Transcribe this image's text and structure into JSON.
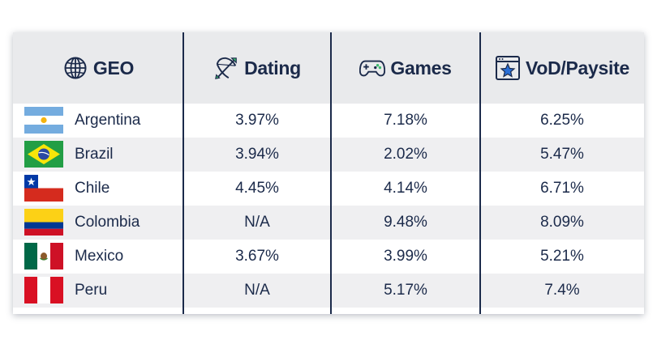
{
  "table": {
    "headers": {
      "geo": "GEO",
      "dating": "Dating",
      "games": "Games",
      "vod": "VoD/Paysite"
    },
    "icons": {
      "geo": "globe-icon",
      "dating": "bow-arrow-icon",
      "games": "gamepad-icon",
      "vod": "browser-star-icon"
    },
    "rows": [
      {
        "country": "Argentina",
        "flag": "argentina-flag",
        "dating": "3.97%",
        "games": "7.18%",
        "vod": "6.25%"
      },
      {
        "country": "Brazil",
        "flag": "brazil-flag",
        "dating": "3.94%",
        "games": "2.02%",
        "vod": "5.47%"
      },
      {
        "country": "Chile",
        "flag": "chile-flag",
        "dating": "4.45%",
        "games": "4.14%",
        "vod": "6.71%"
      },
      {
        "country": "Colombia",
        "flag": "colombia-flag",
        "dating": "N/A",
        "games": "9.48%",
        "vod": "8.09%"
      },
      {
        "country": "Mexico",
        "flag": "mexico-flag",
        "dating": "3.67%",
        "games": "3.99%",
        "vod": "5.21%"
      },
      {
        "country": "Peru",
        "flag": "peru-flag",
        "dating": "N/A",
        "games": "5.17%",
        "vod": "7.4%"
      }
    ]
  },
  "colors": {
    "text": "#1b2a4a",
    "header_bg": "#e9eaec",
    "row_alt_bg": "#efeff1",
    "icon_green": "#3dbb6e",
    "icon_blue": "#2a6fd6"
  }
}
